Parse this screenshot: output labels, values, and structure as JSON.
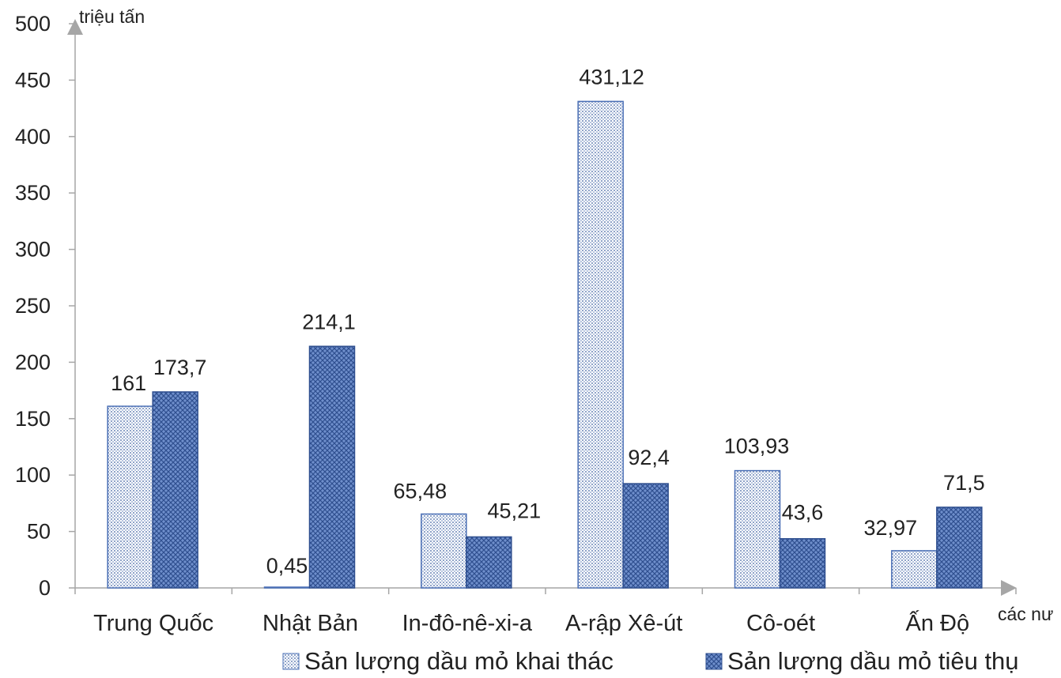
{
  "chart_data": {
    "type": "bar",
    "title": "",
    "ylabel": "triệu tấn",
    "xlabel": "các nư",
    "ylim": [
      0,
      500
    ],
    "yticks": [
      0,
      50,
      100,
      150,
      200,
      250,
      300,
      350,
      400,
      450,
      500
    ],
    "categories": [
      "Trung Quốc",
      "Nhật Bản",
      "In-đô-nê-xi-a",
      "A-rập Xê-út",
      "Cô-oét",
      "Ấn Độ"
    ],
    "series": [
      {
        "name": "Sản lượng dầu mỏ khai thác",
        "values": [
          161,
          0.45,
          65.48,
          431.12,
          103.93,
          32.97
        ],
        "labels": [
          "161",
          "0,45",
          "65,48",
          "431,12",
          "103,93",
          "32,97"
        ],
        "color": "#ffffff",
        "pattern": "dots"
      },
      {
        "name": "Sản lượng dầu mỏ tiêu thụ",
        "values": [
          173.7,
          214.1,
          45.21,
          92.4,
          43.6,
          71.5
        ],
        "labels": [
          "173,7",
          "214,1",
          "45,21",
          "92,4",
          "43,6",
          "71,5"
        ],
        "color": "#4a6fb5",
        "pattern": "crosshatch"
      }
    ],
    "legend_position": "bottom",
    "grid": false,
    "axis_color": "#a6a6a6"
  }
}
